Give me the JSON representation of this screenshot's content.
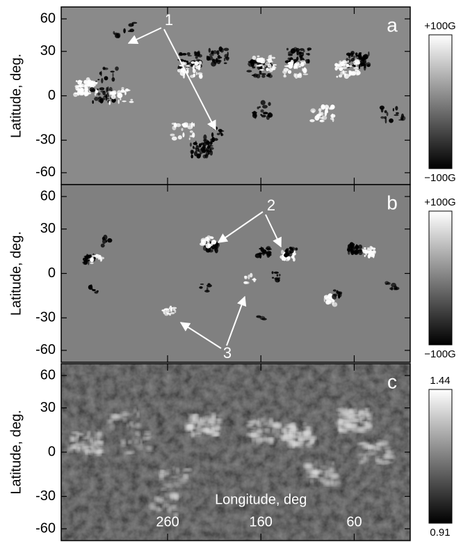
{
  "chart_data": [
    {
      "type": "image",
      "panel_label": "a",
      "ylabel": "Latitude, deg.",
      "yscale": "sine",
      "ylim": [
        -90,
        90
      ],
      "yticks": [
        -60,
        -30,
        0,
        30,
        60
      ],
      "xlim": [
        374,
        0
      ],
      "xticks": [
        260,
        160,
        60
      ],
      "clim": [
        {
          "value": -100,
          "label": "−100G"
        },
        {
          "value": 100,
          "label": "+100G"
        }
      ],
      "annotation": "1"
    },
    {
      "type": "image",
      "panel_label": "b",
      "ylabel": "Latitude, deg.",
      "yscale": "sine",
      "ylim": [
        -90,
        90
      ],
      "yticks": [
        -60,
        -30,
        0,
        30,
        60
      ],
      "xlim": [
        374,
        0
      ],
      "xticks": [
        260,
        160,
        60
      ],
      "clim": [
        {
          "value": -100,
          "label": "−100G"
        },
        {
          "value": 100,
          "label": "+100G"
        }
      ],
      "annotation": "2",
      "annotation2": "3"
    },
    {
      "type": "image",
      "panel_label": "c",
      "ylabel": "Latitude, deg.",
      "yscale": "sine",
      "ylim": [
        -90,
        90
      ],
      "yticks": [
        -60,
        -30,
        0,
        30,
        60
      ],
      "xlim": [
        374,
        0
      ],
      "xticks": [
        260,
        160,
        60
      ],
      "xticklabels": true,
      "xlabel": "Longitude, deg",
      "clim": [
        0.91,
        1.44
      ]
    }
  ]
}
